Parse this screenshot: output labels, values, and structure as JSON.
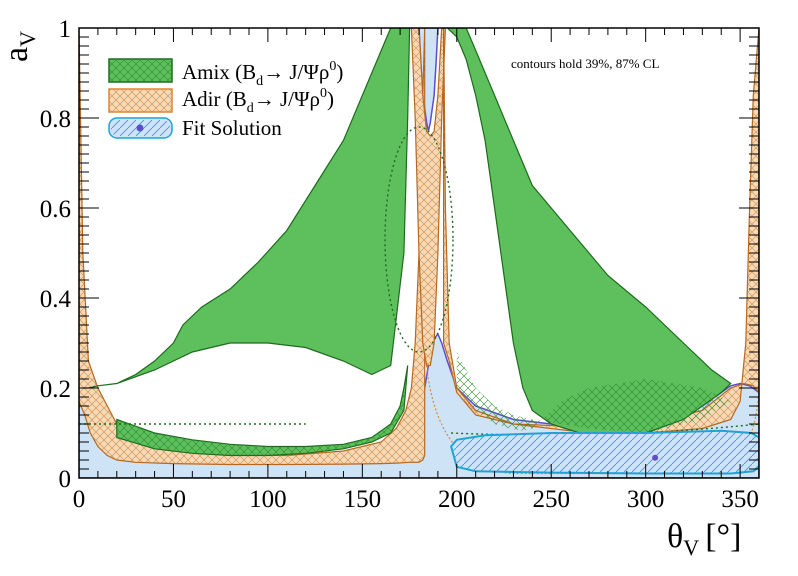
{
  "chart_data": {
    "type": "area",
    "title": "",
    "xlabel": "θ",
    "xlabel_sub": "V",
    "xlabel_unit": "[°]",
    "ylabel": "a",
    "ylabel_sub": "V",
    "xlim": [
      0,
      360
    ],
    "ylim": [
      0,
      1
    ],
    "xticks": [
      0,
      50,
      100,
      150,
      200,
      250,
      300,
      350
    ],
    "yticks": [
      0,
      0.2,
      0.4,
      0.6,
      0.8,
      1
    ],
    "ytick_labels": [
      "0",
      "0.2",
      "0.4",
      "0.6",
      "0.8",
      "1"
    ],
    "annotation": "contours hold 39%, 87% CL",
    "legend": {
      "placement": "top-left",
      "entries": [
        {
          "id": "amix",
          "text": "Amix (B",
          "sub": "d",
          "rest": "→ J/Ψρ",
          "sup": "0",
          "close": ")",
          "fill": "#5dc05d",
          "stroke": "#1d6b1d"
        },
        {
          "id": "adir",
          "text": "Adir (B",
          "sub": "d",
          "rest": "→ J/Ψρ",
          "sup": "0",
          "close": ")",
          "fill": "#f7d9b8",
          "stroke": "#d9893a"
        },
        {
          "id": "fit",
          "text": "Fit Solution",
          "fill": "#cfe3f7",
          "stroke": "#1fa3d6"
        }
      ]
    },
    "series": [
      {
        "name": "Amix (Bd→J/Ψρ0)",
        "color": "#5dc05d",
        "kind": "confidence-region"
      },
      {
        "name": "Adir (Bd→J/Ψρ0)",
        "color": "#f7d9b8",
        "kind": "confidence-region"
      },
      {
        "name": "Fit Solution",
        "color": "#cfe3f7",
        "kind": "confidence-region"
      }
    ],
    "regions": {
      "fit_outer": {
        "x": [
          0,
          0,
          2,
          5,
          10,
          20,
          40,
          60,
          80,
          100,
          120,
          140,
          155,
          165,
          172,
          177,
          180,
          183,
          185,
          187,
          188,
          190,
          192,
          195,
          200,
          210,
          230,
          250,
          270,
          300,
          320,
          330,
          340,
          345,
          350,
          355,
          360,
          360
        ],
        "y": [
          0,
          0.17,
          0.16,
          0.14,
          0.1,
          0.065,
          0.042,
          0.036,
          0.033,
          0.032,
          0.032,
          0.035,
          0.045,
          0.065,
          0.1,
          0.14,
          0.17,
          0.2,
          0.25,
          0.3,
          0.31,
          0.32,
          0.3,
          0.26,
          0.2,
          0.16,
          0.13,
          0.12,
          0.115,
          0.12,
          0.14,
          0.16,
          0.19,
          0.205,
          0.21,
          0.205,
          0.19,
          0
        ]
      },
      "fit_top_spike": {
        "x": [
          180,
          181,
          182,
          184,
          185,
          186,
          188,
          189,
          190
        ],
        "y": [
          1,
          0.92,
          0.85,
          0.79,
          0.77,
          0.79,
          0.85,
          0.92,
          1
        ]
      },
      "fit_inner": {
        "x": [
          197,
          200,
          215,
          250,
          300,
          340,
          356,
          360,
          360,
          357,
          345,
          300,
          250,
          210,
          200,
          197
        ],
        "y": [
          0.07,
          0.085,
          0.095,
          0.1,
          0.1,
          0.105,
          0.1,
          0.09,
          0.025,
          0.015,
          0.01,
          0.01,
          0.012,
          0.015,
          0.025,
          0.07
        ]
      },
      "fit_point": {
        "x": 305,
        "y": 0.045
      },
      "adir_outer_left": {
        "x": [
          0,
          2,
          5,
          10,
          15,
          20,
          30,
          50,
          80,
          110,
          140,
          160,
          168,
          173,
          176,
          178,
          180,
          181,
          183,
          183,
          182,
          180,
          177,
          175,
          172,
          168,
          160,
          140,
          110,
          80,
          50,
          30,
          20,
          15,
          10,
          6,
          3,
          1,
          0
        ],
        "y": [
          1,
          0.5,
          0.26,
          0.2,
          0.16,
          0.12,
          0.08,
          0.06,
          0.052,
          0.05,
          0.06,
          0.08,
          0.11,
          0.15,
          0.2,
          0.3,
          0.5,
          0.7,
          1,
          0.05,
          0.04,
          0.035,
          0.035,
          0.035,
          0.034,
          0.033,
          0.032,
          0.031,
          0.03,
          0.03,
          0.032,
          0.035,
          0.04,
          0.05,
          0.07,
          0.1,
          0.14,
          0.16,
          0.17
        ]
      },
      "adir_center_band": {
        "x": [
          176,
          178,
          180,
          182,
          184,
          186,
          188,
          190,
          192,
          194,
          194,
          192,
          190,
          188,
          186,
          184,
          182,
          180,
          178,
          176
        ],
        "y": [
          1,
          0.8,
          0.5,
          0.3,
          0.25,
          0.25,
          0.3,
          0.5,
          0.8,
          1,
          1,
          1,
          0.85,
          0.77,
          0.76,
          0.77,
          0.85,
          1,
          1,
          1
        ]
      },
      "adir_outer_right": {
        "x": [
          193,
          194,
          196,
          200,
          210,
          230,
          260,
          300,
          330,
          345,
          350,
          353,
          355,
          357,
          359,
          360,
          360,
          357,
          352,
          345,
          330,
          300,
          260,
          230,
          210,
          200,
          196,
          193
        ],
        "y": [
          1,
          0.6,
          0.3,
          0.2,
          0.15,
          0.12,
          0.105,
          0.1,
          0.11,
          0.13,
          0.17,
          0.3,
          0.6,
          0.85,
          0.95,
          1,
          0.19,
          0.205,
          0.21,
          0.2,
          0.15,
          0.12,
          0.115,
          0.12,
          0.14,
          0.19,
          0.26,
          0.3
        ]
      },
      "amix_left": {
        "x": [
          2,
          5,
          10,
          20,
          40,
          60,
          80,
          100,
          120,
          140,
          155,
          165,
          172,
          174,
          175,
          170,
          165,
          160,
          150,
          140,
          125,
          110,
          95,
          80,
          65,
          55,
          50,
          40,
          30,
          20,
          10,
          5,
          2
        ],
        "y": [
          0.2,
          0.2,
          0.205,
          0.21,
          0.24,
          0.28,
          0.3,
          0.3,
          0.29,
          0.26,
          0.23,
          0.25,
          0.5,
          0.8,
          1,
          1,
          1,
          0.95,
          0.85,
          0.75,
          0.65,
          0.55,
          0.48,
          0.42,
          0.38,
          0.34,
          0.3,
          0.26,
          0.23,
          0.21,
          0.205,
          0.2,
          0.2
        ]
      },
      "amix_left_inner": {
        "x": [
          20,
          40,
          60,
          80,
          100,
          120,
          140,
          155,
          165,
          170,
          172,
          174,
          172,
          165,
          155,
          140,
          120,
          100,
          80,
          60,
          40,
          20
        ],
        "y": [
          0.13,
          0.1,
          0.085,
          0.075,
          0.07,
          0.07,
          0.075,
          0.09,
          0.12,
          0.16,
          0.2,
          0.25,
          0.15,
          0.1,
          0.08,
          0.065,
          0.055,
          0.05,
          0.05,
          0.055,
          0.065,
          0.09
        ]
      },
      "amix_right": {
        "x": [
          195,
          200,
          205,
          210,
          220,
          230,
          240,
          260,
          280,
          300,
          320,
          335,
          345,
          340,
          330,
          320,
          300,
          280,
          265,
          250,
          240,
          235,
          230,
          225,
          220,
          215,
          210,
          205,
          200,
          195
        ],
        "y": [
          1,
          1,
          1,
          0.95,
          0.85,
          0.75,
          0.65,
          0.55,
          0.45,
          0.38,
          0.3,
          0.24,
          0.21,
          0.19,
          0.16,
          0.13,
          0.1,
          0.095,
          0.1,
          0.12,
          0.15,
          0.2,
          0.3,
          0.45,
          0.6,
          0.75,
          0.85,
          0.93,
          0.98,
          1
        ]
      },
      "amix_dotted_ellipse": {
        "cx": 180,
        "cy": 0.53,
        "rx": 18,
        "ry": 0.25
      },
      "fit_dotted_horizon": {
        "y": 0.12
      }
    }
  }
}
